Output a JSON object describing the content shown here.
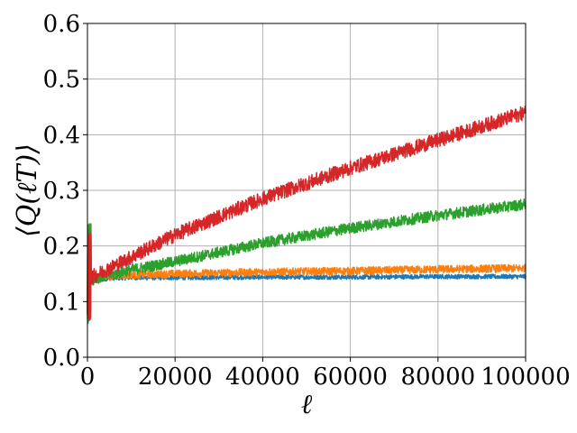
{
  "chart_data": {
    "type": "line",
    "title": "",
    "xlabel": "ℓ",
    "ylabel": "⟨Q(ℓT)⟩",
    "xlim": [
      0,
      100000
    ],
    "ylim": [
      0.0,
      0.6
    ],
    "x_ticks": [
      0,
      20000,
      40000,
      60000,
      80000,
      100000
    ],
    "x_tick_labels": [
      "0",
      "20000",
      "40000",
      "60000",
      "80000",
      "100000"
    ],
    "y_ticks": [
      0.0,
      0.1,
      0.2,
      0.3,
      0.4,
      0.5,
      0.6
    ],
    "y_tick_labels": [
      "0.0",
      "0.1",
      "0.2",
      "0.3",
      "0.4",
      "0.5",
      "0.6"
    ],
    "grid": true,
    "legend": "none",
    "series": [
      {
        "color": "#1f77b4",
        "noise": 0.004,
        "initial_spike": [
          0.06,
          0.22
        ],
        "x": [
          0,
          2000,
          5000,
          10000,
          20000,
          40000,
          60000,
          80000,
          100000
        ],
        "values": [
          0.13,
          0.138,
          0.142,
          0.143,
          0.143,
          0.144,
          0.144,
          0.145,
          0.145
        ]
      },
      {
        "color": "#ff7f0e",
        "noise": 0.007,
        "initial_spike": [
          0.06,
          0.24
        ],
        "x": [
          0,
          2000,
          5000,
          10000,
          20000,
          40000,
          60000,
          80000,
          100000
        ],
        "values": [
          0.135,
          0.142,
          0.146,
          0.148,
          0.15,
          0.153,
          0.155,
          0.158,
          0.16
        ]
      },
      {
        "color": "#2ca02c",
        "noise": 0.01,
        "initial_spike": [
          0.06,
          0.24
        ],
        "x": [
          0,
          2000,
          5000,
          10000,
          20000,
          40000,
          60000,
          80000,
          100000
        ],
        "values": [
          0.135,
          0.142,
          0.148,
          0.157,
          0.172,
          0.205,
          0.232,
          0.255,
          0.275
        ]
      },
      {
        "color": "#d62728",
        "noise": 0.013,
        "initial_spike": [
          0.06,
          0.23
        ],
        "x": [
          0,
          2000,
          5000,
          10000,
          20000,
          40000,
          60000,
          80000,
          100000
        ],
        "values": [
          0.14,
          0.148,
          0.16,
          0.18,
          0.22,
          0.285,
          0.34,
          0.39,
          0.44
        ]
      }
    ]
  }
}
